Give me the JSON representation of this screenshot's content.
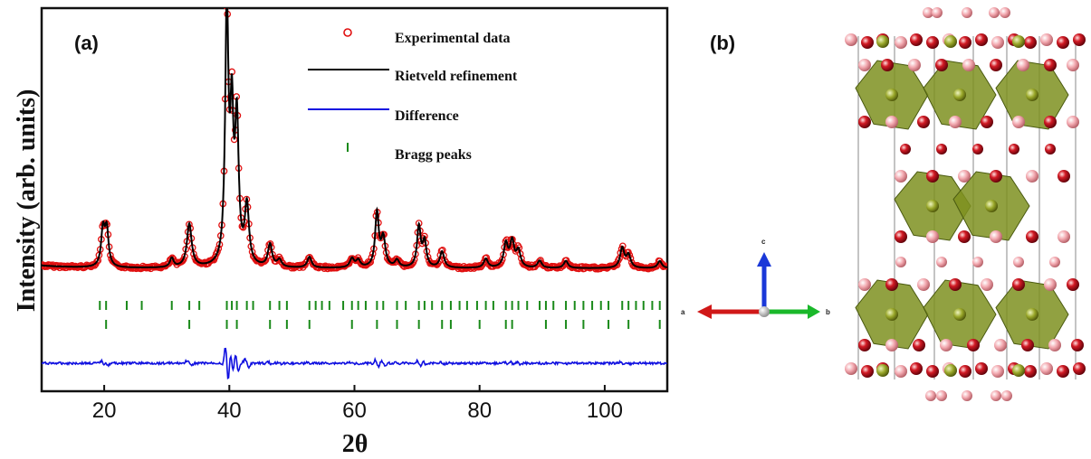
{
  "panel_a_label": "(a)",
  "panel_b_label": "(b)",
  "chart_data": {
    "type": "line",
    "xlabel": "2θ",
    "ylabel": "Intensity (arb. units)",
    "xlim": [
      10,
      110
    ],
    "xticks": [
      20,
      40,
      60,
      80,
      100
    ],
    "legend": {
      "placement": "top-right",
      "entries": [
        "Experimental data",
        "Rietveld refinement",
        "Difference",
        "Bragg peaks"
      ]
    },
    "peaks": [
      {
        "x": 19.8,
        "height": 40,
        "width": 0.35
      },
      {
        "x": 20.4,
        "height": 40,
        "width": 0.35
      },
      {
        "x": 30.8,
        "height": 10,
        "width": 0.35
      },
      {
        "x": 33.6,
        "height": 48,
        "width": 0.45
      },
      {
        "x": 39.6,
        "height": 280,
        "width": 0.32
      },
      {
        "x": 40.4,
        "height": 150,
        "width": 0.3
      },
      {
        "x": 41.2,
        "height": 155,
        "width": 0.35
      },
      {
        "x": 42.8,
        "height": 65,
        "width": 0.4
      },
      {
        "x": 46.5,
        "height": 25,
        "width": 0.4
      },
      {
        "x": 48.0,
        "height": 8,
        "width": 0.4
      },
      {
        "x": 52.8,
        "height": 12,
        "width": 0.4
      },
      {
        "x": 59.6,
        "height": 10,
        "width": 0.4
      },
      {
        "x": 60.6,
        "height": 8,
        "width": 0.4
      },
      {
        "x": 63.6,
        "height": 60,
        "width": 0.35
      },
      {
        "x": 64.6,
        "height": 32,
        "width": 0.4
      },
      {
        "x": 66.8,
        "height": 8,
        "width": 0.4
      },
      {
        "x": 70.3,
        "height": 45,
        "width": 0.35
      },
      {
        "x": 71.2,
        "height": 28,
        "width": 0.35
      },
      {
        "x": 74.0,
        "height": 18,
        "width": 0.4
      },
      {
        "x": 81.0,
        "height": 10,
        "width": 0.4
      },
      {
        "x": 84.2,
        "height": 26,
        "width": 0.4
      },
      {
        "x": 85.2,
        "height": 28,
        "width": 0.4
      },
      {
        "x": 86.2,
        "height": 18,
        "width": 0.4
      },
      {
        "x": 89.6,
        "height": 8,
        "width": 0.4
      },
      {
        "x": 93.8,
        "height": 8,
        "width": 0.4
      },
      {
        "x": 102.8,
        "height": 22,
        "width": 0.4
      },
      {
        "x": 103.8,
        "height": 14,
        "width": 0.4
      },
      {
        "x": 108.8,
        "height": 8,
        "width": 0.4
      }
    ],
    "bragg_row_1": [
      19.3,
      20.3,
      23.6,
      26.0,
      30.8,
      33.6,
      35.2,
      39.6,
      40.4,
      41.2,
      42.8,
      43.8,
      46.5,
      48.0,
      49.2,
      52.8,
      53.8,
      54.8,
      56.0,
      58.2,
      59.6,
      60.6,
      61.8,
      63.6,
      64.6,
      66.8,
      68.2,
      70.3,
      71.2,
      72.4,
      74.0,
      75.4,
      76.8,
      78.0,
      79.6,
      81.0,
      82.2,
      84.2,
      85.2,
      86.2,
      87.6,
      89.6,
      90.6,
      91.8,
      93.8,
      95.2,
      96.6,
      98.0,
      99.4,
      100.6,
      102.8,
      103.8,
      105.0,
      106.2,
      107.6,
      108.8
    ],
    "bragg_row_2": [
      20.3,
      33.6,
      39.6,
      41.2,
      46.5,
      49.2,
      52.8,
      59.6,
      63.6,
      66.8,
      70.3,
      74.0,
      75.4,
      80.0,
      84.2,
      85.2,
      90.6,
      93.8,
      96.6,
      100.6,
      103.8,
      108.8
    ]
  },
  "axes_triad": {
    "a": "a",
    "b": "b",
    "c": "c"
  },
  "colors": {
    "experimental": "#e01010",
    "refinement": "#000000",
    "difference": "#1010e0",
    "bragg": "#1a8a1a",
    "polyhedra": "#7a8c1e",
    "oxygen_red": "#c0101a",
    "oxygen_pink": "#f0a0a8"
  }
}
